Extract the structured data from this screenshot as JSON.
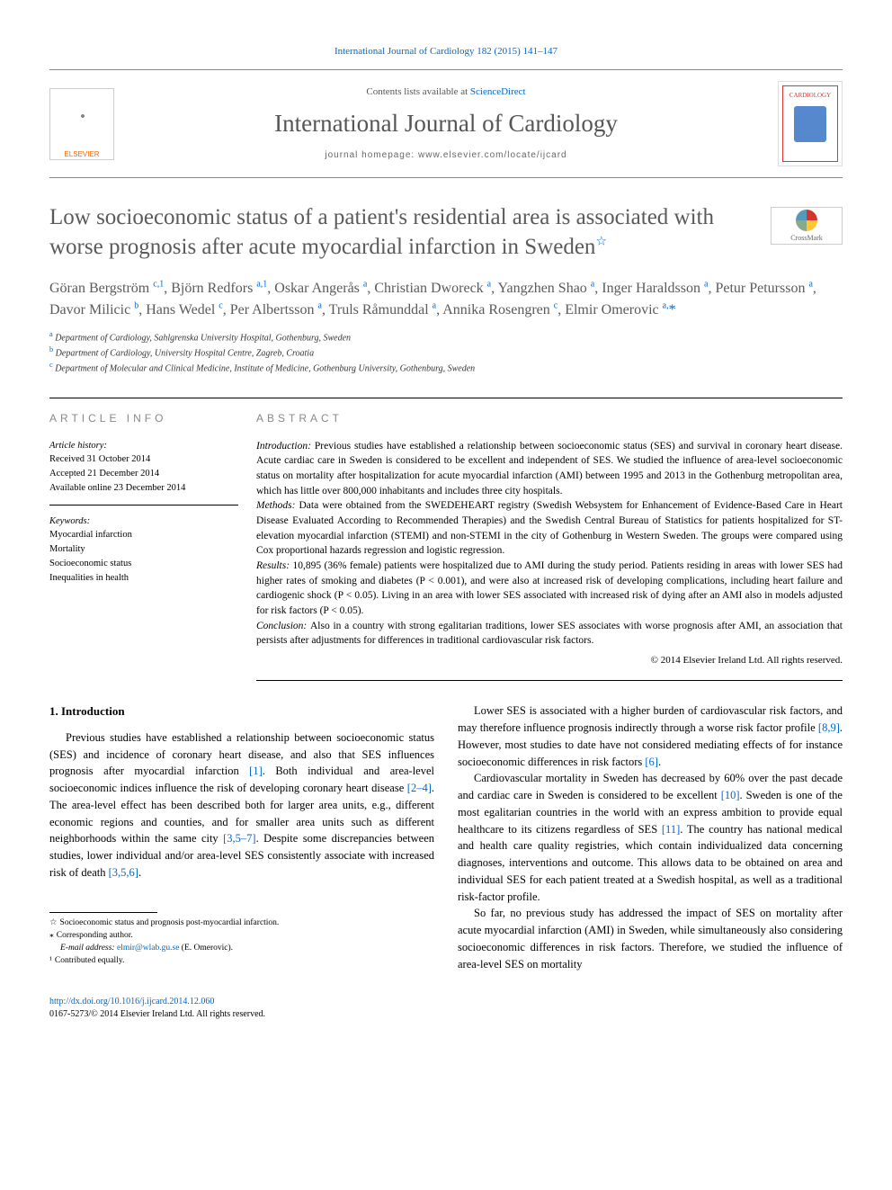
{
  "header": {
    "top_link": "International Journal of Cardiology 182 (2015) 141–147",
    "contents_prefix": "Contents lists available at ",
    "contents_link": "ScienceDirect",
    "journal_name": "International Journal of Cardiology",
    "homepage_label": "journal homepage: ",
    "homepage_url": "www.elsevier.com/locate/ijcard",
    "elsevier_label": "ELSEVIER",
    "cardiology_label": "CARDIOLOGY"
  },
  "title": "Low socioeconomic status of a patient's residential area is associated with worse prognosis after acute myocardial infarction in Sweden",
  "star": "☆",
  "crossmark": "CrossMark",
  "authors_html": "Göran Bergström <sup>c,1</sup>, Björn Redfors <sup>a,1</sup>, Oskar Angerås <sup>a</sup>, Christian Dworeck <sup>a</sup>, Yangzhen Shao <sup>a</sup>, Inger Haraldsson <sup>a</sup>, Petur Petursson <sup>a</sup>, Davor Milicic <sup>b</sup>, Hans Wedel <sup>c</sup>, Per Albertsson <sup>a</sup>, Truls Råmunddal <sup>a</sup>, Annika Rosengren <sup>c</sup>, Elmir Omerovic <sup>a,</sup><span class=\"asterisk\">*</span>",
  "affiliations": [
    {
      "marker": "a",
      "text": "Department of Cardiology, Sahlgrenska University Hospital, Gothenburg, Sweden"
    },
    {
      "marker": "b",
      "text": "Department of Cardiology, University Hospital Centre, Zagreb, Croatia"
    },
    {
      "marker": "c",
      "text": "Department of Molecular and Clinical Medicine, Institute of Medicine, Gothenburg University, Gothenburg, Sweden"
    }
  ],
  "info": {
    "label": "ARTICLE INFO",
    "history_label": "Article history:",
    "received": "Received 31 October 2014",
    "accepted": "Accepted 21 December 2014",
    "online": "Available online 23 December 2014",
    "keywords_label": "Keywords:",
    "keywords": [
      "Myocardial infarction",
      "Mortality",
      "Socioeconomic status",
      "Inequalities in health"
    ]
  },
  "abstract": {
    "label": "ABSTRACT",
    "intro_label": "Introduction: ",
    "intro": "Previous studies have established a relationship between socioeconomic status (SES) and survival in coronary heart disease. Acute cardiac care in Sweden is considered to be excellent and independent of SES. We studied the influence of area-level socioeconomic status on mortality after hospitalization for acute myocardial infarction (AMI) between 1995 and 2013 in the Gothenburg metropolitan area, which has little over 800,000 inhabitants and includes three city hospitals.",
    "methods_label": "Methods: ",
    "methods": "Data were obtained from the SWEDEHEART registry (Swedish Websystem for Enhancement of Evidence-Based Care in Heart Disease Evaluated According to Recommended Therapies) and the Swedish Central Bureau of Statistics for patients hospitalized for ST-elevation myocardial infarction (STEMI) and non-STEMI in the city of Gothenburg in Western Sweden. The groups were compared using Cox proportional hazards regression and logistic regression.",
    "results_label": "Results: ",
    "results": "10,895 (36% female) patients were hospitalized due to AMI during the study period. Patients residing in areas with lower SES had higher rates of smoking and diabetes (P < 0.001), and were also at increased risk of developing complications, including heart failure and cardiogenic shock (P < 0.05). Living in an area with lower SES associated with increased risk of dying after an AMI also in models adjusted for risk factors (P < 0.05).",
    "conclusion_label": "Conclusion: ",
    "conclusion": "Also in a country with strong egalitarian traditions, lower SES associates with worse prognosis after AMI, an association that persists after adjustments for differences in traditional cardiovascular risk factors.",
    "copyright": "© 2014 Elsevier Ireland Ltd. All rights reserved."
  },
  "body": {
    "heading": "1. Introduction",
    "p1a": "Previous studies have established a relationship between socioeconomic status (SES) and incidence of coronary heart disease, and also that SES influences prognosis after myocardial infarction ",
    "r1": "[1]",
    "p1b": ". Both individual and area-level socioeconomic indices influence the risk of developing coronary heart disease ",
    "r24": "[2–4]",
    "p1c": ". The area-level effect has been described both for larger area units, e.g., different economic regions and counties, and for smaller area units such as different neighborhoods within the same city ",
    "r357": "[3,5–7]",
    "p1d": ". Despite some discrepancies between studies, lower individual and/or area-level SES consistently associate with increased risk of death ",
    "r356": "[3,5,6]",
    "period": ".",
    "p2a": "Lower SES is associated with a higher burden of cardiovascular risk factors, and may therefore influence prognosis indirectly through a worse risk factor profile ",
    "r89": "[8,9]",
    "p2b": ". However, most studies to date have not considered mediating effects of for instance socioeconomic differences in risk factors ",
    "r6": "[6]",
    "p3a": "Cardiovascular mortality in Sweden has decreased by 60% over the past decade and cardiac care in Sweden is considered to be excellent ",
    "r10": "[10]",
    "p3b": ". Sweden is one of the most egalitarian countries in the world with an express ambition to provide equal healthcare to its citizens regardless of SES ",
    "r11": "[11]",
    "p3c": ". The country has national medical and health care quality registries, which contain individualized data concerning diagnoses, interventions and outcome. This allows data to be obtained on area and individual SES for each patient treated at a Swedish hospital, as well as a traditional risk-factor profile.",
    "p4": "So far, no previous study has addressed the impact of SES on mortality after acute myocardial infarction (AMI) in Sweden, while simultaneously also considering socioeconomic differences in risk factors. Therefore, we studied the influence of area-level SES on mortality"
  },
  "footnotes": {
    "starnote": "Socioeconomic status and prognosis post-myocardial infarction.",
    "corr": "Corresponding author.",
    "email_label": "E-mail address: ",
    "email": "elmir@wlab.gu.se",
    "email_name": " (E. Omerovic).",
    "equal": "Contributed equally."
  },
  "footer": {
    "doi": "http://dx.doi.org/10.1016/j.ijcard.2014.12.060",
    "issn": "0167-5273/© 2014 Elsevier Ireland Ltd. All rights reserved."
  },
  "colors": {
    "link": "#0066cc",
    "accent_red": "#de3333",
    "text_gray": "#5a5a5a"
  }
}
